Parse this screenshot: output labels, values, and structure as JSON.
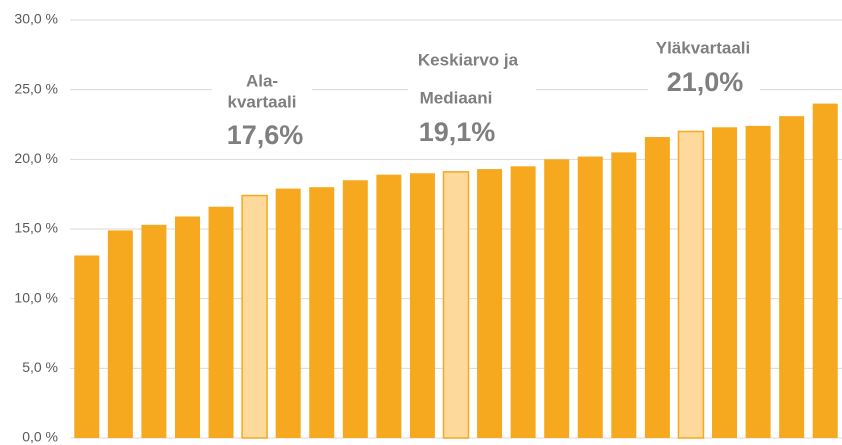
{
  "chart_data": {
    "type": "bar",
    "categories": [
      null,
      null,
      null,
      null,
      null,
      null,
      null,
      null,
      null,
      null,
      null,
      null,
      null,
      null,
      null,
      null,
      null,
      null,
      null,
      null,
      null,
      null,
      null
    ],
    "values": [
      13.1,
      14.9,
      15.3,
      15.9,
      16.6,
      17.4,
      17.9,
      18.0,
      18.5,
      18.9,
      19.0,
      19.1,
      19.3,
      19.5,
      20.0,
      20.2,
      20.5,
      21.6,
      22.0,
      22.3,
      22.4,
      23.1,
      24.0
    ],
    "color": "#f6a81f",
    "highlight_color": "#fdd99b",
    "highlight": [
      5,
      11,
      18
    ],
    "ylim": [
      0,
      30
    ],
    "yticks": [
      {
        "value": 0,
        "label": "0,0 %"
      },
      {
        "value": 5,
        "label": "5,0 %"
      },
      {
        "value": 10,
        "label": "10,0 %"
      },
      {
        "value": 15,
        "label": "15,0 %"
      },
      {
        "value": 20,
        "label": "20,0 %"
      },
      {
        "value": 25,
        "label": "25,0 %"
      },
      {
        "value": 30,
        "label": "30,0 %"
      }
    ],
    "grid": true,
    "annotations": [
      {
        "lines": [
          "Ala-",
          "kvartaali"
        ],
        "label": "17,6%"
      },
      {
        "lines": [
          "Keskiarvo ja",
          "Mediaani"
        ],
        "label": "19,1%"
      },
      {
        "lines": [
          "Yläkvartaali"
        ],
        "label": "21,0%"
      }
    ]
  }
}
